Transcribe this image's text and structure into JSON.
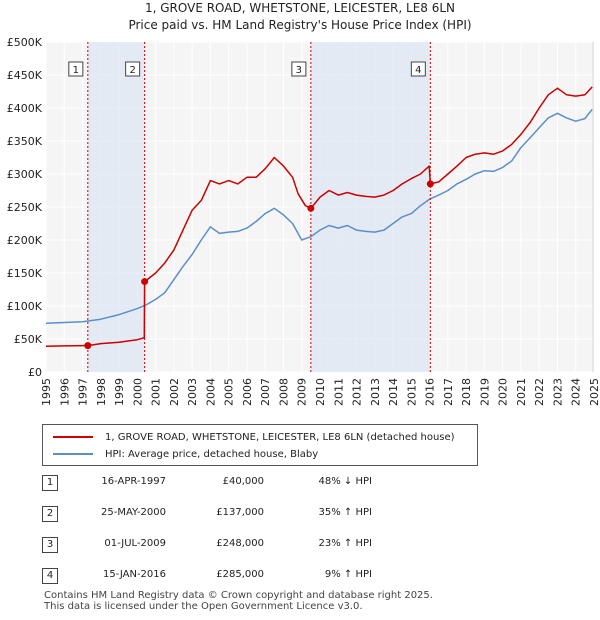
{
  "title": "1, GROVE ROAD, WHETSTONE, LEICESTER, LE8 6LN",
  "subtitle": "Price paid vs. HM Land Registry's House Price Index (HPI)",
  "legend": {
    "property_label": "1, GROVE ROAD, WHETSTONE, LEICESTER, LE8 6LN (detached house)",
    "hpi_label": "HPI: Average price, detached house, Blaby",
    "property_color": "#cc0000",
    "hpi_color": "#5b8fc9"
  },
  "sales": [
    {
      "num": "1",
      "date": "16-APR-1997",
      "price": "£40,000",
      "hpi": "48% ↓ HPI"
    },
    {
      "num": "2",
      "date": "25-MAY-2000",
      "price": "£137,000",
      "hpi": "35% ↑ HPI"
    },
    {
      "num": "3",
      "date": "01-JUL-2009",
      "price": "£248,000",
      "hpi": "23% ↑ HPI"
    },
    {
      "num": "4",
      "date": "15-JAN-2016",
      "price": "£285,000",
      "hpi": "9% ↑ HPI"
    }
  ],
  "footer": {
    "line1": "Contains HM Land Registry data © Crown copyright and database right 2025.",
    "line2": "This data is licensed under the Open Government Licence v3.0."
  },
  "chart_data": {
    "type": "line",
    "xlim": [
      1995,
      2025
    ],
    "ylim": [
      0,
      500000
    ],
    "x_ticks": [
      1995,
      1996,
      1997,
      1998,
      1999,
      2000,
      2001,
      2002,
      2003,
      2004,
      2005,
      2006,
      2007,
      2008,
      2009,
      2010,
      2011,
      2012,
      2013,
      2014,
      2015,
      2016,
      2017,
      2018,
      2019,
      2020,
      2021,
      2022,
      2023,
      2024,
      2025
    ],
    "y_ticks": [
      {
        "value": 0,
        "label": "£0"
      },
      {
        "value": 50000,
        "label": "£50K"
      },
      {
        "value": 100000,
        "label": "£100K"
      },
      {
        "value": 150000,
        "label": "£150K"
      },
      {
        "value": 200000,
        "label": "£200K"
      },
      {
        "value": 250000,
        "label": "£250K"
      },
      {
        "value": 300000,
        "label": "£300K"
      },
      {
        "value": 350000,
        "label": "£350K"
      },
      {
        "value": 400000,
        "label": "£400K"
      },
      {
        "value": 450000,
        "label": "£450K"
      },
      {
        "value": 500000,
        "label": "£500K"
      }
    ],
    "grid": true,
    "markers": [
      {
        "label": "1",
        "x": 1997.29,
        "y": 40000
      },
      {
        "label": "2",
        "x": 2000.4,
        "y": 137000
      },
      {
        "label": "3",
        "x": 2009.5,
        "y": 248000
      },
      {
        "label": "4",
        "x": 2016.04,
        "y": 285000
      }
    ],
    "series": [
      {
        "name": "1, GROVE ROAD, WHETSTONE, LEICESTER, LE8 6LN (detached house)",
        "color": "#cc0000",
        "points": [
          [
            1995.0,
            39000
          ],
          [
            1996.0,
            39500
          ],
          [
            1997.0,
            40000
          ],
          [
            1997.29,
            40000
          ],
          [
            1998.0,
            43000
          ],
          [
            1999.0,
            45000
          ],
          [
            2000.0,
            49000
          ],
          [
            2000.38,
            52000
          ],
          [
            2000.4,
            137000
          ],
          [
            2001.0,
            150000
          ],
          [
            2001.5,
            165000
          ],
          [
            2002.0,
            185000
          ],
          [
            2002.5,
            215000
          ],
          [
            2003.0,
            245000
          ],
          [
            2003.5,
            260000
          ],
          [
            2004.0,
            290000
          ],
          [
            2004.5,
            285000
          ],
          [
            2005.0,
            290000
          ],
          [
            2005.5,
            285000
          ],
          [
            2006.0,
            295000
          ],
          [
            2006.5,
            295000
          ],
          [
            2007.0,
            308000
          ],
          [
            2007.5,
            325000
          ],
          [
            2008.0,
            312000
          ],
          [
            2008.5,
            295000
          ],
          [
            2008.8,
            270000
          ],
          [
            2009.2,
            252000
          ],
          [
            2009.5,
            248000
          ],
          [
            2010.0,
            265000
          ],
          [
            2010.5,
            275000
          ],
          [
            2011.0,
            268000
          ],
          [
            2011.5,
            272000
          ],
          [
            2012.0,
            268000
          ],
          [
            2012.5,
            266000
          ],
          [
            2013.0,
            265000
          ],
          [
            2013.5,
            268000
          ],
          [
            2014.0,
            275000
          ],
          [
            2014.5,
            285000
          ],
          [
            2015.0,
            293000
          ],
          [
            2015.5,
            300000
          ],
          [
            2015.98,
            312000
          ],
          [
            2016.04,
            285000
          ],
          [
            2016.5,
            288000
          ],
          [
            2017.0,
            300000
          ],
          [
            2017.5,
            312000
          ],
          [
            2018.0,
            325000
          ],
          [
            2018.5,
            330000
          ],
          [
            2019.0,
            332000
          ],
          [
            2019.5,
            330000
          ],
          [
            2020.0,
            335000
          ],
          [
            2020.5,
            345000
          ],
          [
            2021.0,
            360000
          ],
          [
            2021.5,
            378000
          ],
          [
            2022.0,
            400000
          ],
          [
            2022.5,
            420000
          ],
          [
            2023.0,
            430000
          ],
          [
            2023.5,
            420000
          ],
          [
            2024.0,
            418000
          ],
          [
            2024.5,
            420000
          ],
          [
            2024.9,
            432000
          ]
        ]
      },
      {
        "name": "HPI: Average price, detached house, Blaby",
        "color": "#5b8fc9",
        "points": [
          [
            1995.0,
            74000
          ],
          [
            1996.0,
            75000
          ],
          [
            1997.0,
            76000
          ],
          [
            1998.0,
            80000
          ],
          [
            1999.0,
            87000
          ],
          [
            2000.0,
            96000
          ],
          [
            2000.5,
            102000
          ],
          [
            2001.0,
            110000
          ],
          [
            2001.5,
            120000
          ],
          [
            2002.0,
            140000
          ],
          [
            2002.5,
            160000
          ],
          [
            2003.0,
            178000
          ],
          [
            2003.5,
            200000
          ],
          [
            2004.0,
            220000
          ],
          [
            2004.5,
            210000
          ],
          [
            2005.0,
            212000
          ],
          [
            2005.5,
            213000
          ],
          [
            2006.0,
            218000
          ],
          [
            2006.5,
            228000
          ],
          [
            2007.0,
            240000
          ],
          [
            2007.5,
            248000
          ],
          [
            2008.0,
            238000
          ],
          [
            2008.5,
            225000
          ],
          [
            2009.0,
            200000
          ],
          [
            2009.5,
            205000
          ],
          [
            2010.0,
            215000
          ],
          [
            2010.5,
            222000
          ],
          [
            2011.0,
            218000
          ],
          [
            2011.5,
            222000
          ],
          [
            2012.0,
            215000
          ],
          [
            2012.5,
            213000
          ],
          [
            2013.0,
            212000
          ],
          [
            2013.5,
            215000
          ],
          [
            2014.0,
            225000
          ],
          [
            2014.5,
            235000
          ],
          [
            2015.0,
            240000
          ],
          [
            2015.5,
            252000
          ],
          [
            2016.0,
            262000
          ],
          [
            2016.5,
            268000
          ],
          [
            2017.0,
            275000
          ],
          [
            2017.5,
            285000
          ],
          [
            2018.0,
            292000
          ],
          [
            2018.5,
            300000
          ],
          [
            2019.0,
            305000
          ],
          [
            2019.5,
            304000
          ],
          [
            2020.0,
            310000
          ],
          [
            2020.5,
            320000
          ],
          [
            2021.0,
            340000
          ],
          [
            2021.5,
            355000
          ],
          [
            2022.0,
            370000
          ],
          [
            2022.5,
            385000
          ],
          [
            2023.0,
            392000
          ],
          [
            2023.5,
            385000
          ],
          [
            2024.0,
            380000
          ],
          [
            2024.5,
            384000
          ],
          [
            2024.9,
            398000
          ]
        ]
      }
    ]
  }
}
